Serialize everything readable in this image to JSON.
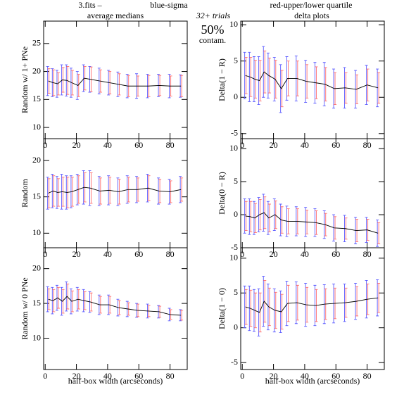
{
  "header": {
    "label": "3.fits –",
    "entries": [
      {
        "name": "blue-sigma",
        "color": "#5a5aff"
      },
      {
        "name": "red-upper/lower quartile",
        "color": "#ff4a4a"
      }
    ],
    "note": "32+ trials",
    "percent": "50%",
    "contam": "contam.",
    "column_titles": [
      "average medians",
      "delta plots"
    ]
  },
  "chart_data": [
    {
      "type": "errorbar",
      "ylabel": "Random w/ 1+ PNe",
      "x": [
        2,
        5,
        8,
        11,
        14,
        17,
        21,
        25,
        29,
        35,
        41,
        47,
        53,
        59,
        66,
        73,
        80,
        87
      ],
      "values": [
        18.3,
        18.0,
        17.8,
        18.5,
        18.4,
        18.0,
        17.5,
        18.8,
        18.6,
        18.3,
        18.0,
        17.7,
        17.4,
        17.4,
        17.4,
        17.5,
        17.4,
        17.4
      ],
      "sigma": [
        2.6,
        2.5,
        2.4,
        2.7,
        2.8,
        2.6,
        2.5,
        2.4,
        2.3,
        2.3,
        2.2,
        2.2,
        2.1,
        2.2,
        2.1,
        2.0,
        2.1,
        2.0
      ],
      "quartile": [
        2.2,
        2.3,
        2.0,
        2.2,
        2.5,
        2.2,
        2.0,
        2.1,
        2.2,
        2.0,
        2.0,
        1.9,
        1.9,
        1.8,
        1.9,
        1.8,
        1.8,
        1.9
      ],
      "xlim": [
        -1,
        91
      ],
      "ylim": [
        8,
        29
      ],
      "xticks": [
        0,
        20,
        40,
        60,
        80
      ],
      "yticks": [
        10,
        15,
        20,
        25
      ]
    },
    {
      "type": "errorbar",
      "ylabel": "Delta(1 − R)",
      "x": [
        2,
        5,
        8,
        11,
        14,
        17,
        21,
        25,
        29,
        35,
        41,
        47,
        53,
        59,
        66,
        73,
        80,
        87
      ],
      "values": [
        3.0,
        2.8,
        2.5,
        2.3,
        3.5,
        3.0,
        2.5,
        1.2,
        2.6,
        2.6,
        2.2,
        2.0,
        1.8,
        1.2,
        1.3,
        1.1,
        1.7,
        1.3
      ],
      "sigma": [
        3.2,
        3.4,
        3.1,
        3.3,
        3.5,
        3.1,
        3.0,
        3.3,
        3.0,
        3.1,
        2.9,
        2.8,
        3.0,
        2.7,
        2.8,
        2.6,
        2.7,
        2.6
      ],
      "quartile": [
        2.5,
        2.7,
        2.6,
        2.8,
        2.9,
        2.4,
        2.6,
        2.5,
        2.4,
        2.4,
        2.3,
        2.2,
        2.3,
        2.2,
        2.1,
        2.0,
        2.2,
        2.1
      ],
      "xlim": [
        -1,
        91
      ],
      "ylim": [
        -5.7,
        10.5
      ],
      "xticks": [
        0,
        20,
        40,
        60,
        80
      ],
      "yticks": [
        -5,
        0,
        5,
        10
      ]
    },
    {
      "type": "errorbar",
      "ylabel": "Random",
      "x": [
        2,
        5,
        8,
        11,
        14,
        17,
        21,
        25,
        29,
        35,
        41,
        47,
        53,
        59,
        66,
        73,
        80,
        87
      ],
      "values": [
        15.5,
        15.8,
        15.6,
        15.7,
        15.6,
        15.7,
        16.0,
        16.3,
        16.2,
        15.8,
        15.9,
        15.7,
        16.0,
        16.0,
        16.2,
        15.8,
        15.7,
        16.0
      ],
      "sigma": [
        2.2,
        2.3,
        2.2,
        2.4,
        2.3,
        2.2,
        2.1,
        2.3,
        2.4,
        2.0,
        2.0,
        1.9,
        1.9,
        1.8,
        1.9,
        1.8,
        1.7,
        1.8
      ],
      "quartile": [
        2.0,
        2.1,
        1.9,
        2.0,
        2.1,
        2.0,
        1.9,
        2.0,
        2.1,
        1.8,
        1.8,
        1.7,
        1.7,
        1.6,
        1.7,
        1.6,
        1.5,
        1.6
      ],
      "xlim": [
        -1,
        91
      ],
      "ylim": [
        8,
        23
      ],
      "xticks": [
        0,
        20,
        40,
        60,
        80
      ],
      "yticks": [
        10,
        15,
        20
      ]
    },
    {
      "type": "errorbar",
      "ylabel": "Delta(0 − R)",
      "x": [
        2,
        5,
        8,
        11,
        14,
        17,
        21,
        25,
        29,
        35,
        41,
        47,
        53,
        59,
        66,
        73,
        80,
        87
      ],
      "values": [
        -0.2,
        -0.3,
        -0.5,
        0.0,
        0.3,
        -0.5,
        0.0,
        -0.8,
        -1.0,
        -1.0,
        -1.1,
        -1.2,
        -1.5,
        -2.0,
        -2.1,
        -2.4,
        -2.3,
        -2.8
      ],
      "sigma": [
        2.6,
        2.7,
        2.5,
        2.6,
        2.8,
        2.5,
        2.4,
        2.4,
        2.3,
        2.2,
        2.2,
        2.1,
        2.1,
        2.0,
        2.0,
        2.0,
        1.9,
        2.0
      ],
      "quartile": [
        2.2,
        2.3,
        2.2,
        2.3,
        2.4,
        2.1,
        2.1,
        2.0,
        1.9,
        1.9,
        1.8,
        1.8,
        1.7,
        1.7,
        1.6,
        1.7,
        1.6,
        1.6
      ],
      "xlim": [
        -1,
        91
      ],
      "ylim": [
        -5,
        11.5
      ],
      "xticks": [
        0,
        20,
        40,
        60,
        80
      ],
      "yticks": [
        -5,
        0,
        5,
        10
      ]
    },
    {
      "type": "errorbar",
      "ylabel": "Random w/ 0 PNe",
      "xlabel": "half-box width (arcseconds)",
      "x": [
        2,
        5,
        8,
        11,
        14,
        17,
        21,
        25,
        29,
        35,
        41,
        47,
        53,
        59,
        66,
        73,
        80,
        87
      ],
      "values": [
        15.6,
        15.4,
        15.8,
        15.3,
        16.0,
        15.3,
        15.6,
        15.4,
        15.2,
        14.8,
        14.8,
        14.4,
        14.2,
        14.0,
        13.9,
        13.8,
        13.4,
        13.3
      ],
      "sigma": [
        1.8,
        1.9,
        1.8,
        2.0,
        2.1,
        1.8,
        1.7,
        1.6,
        1.5,
        1.4,
        1.4,
        1.2,
        1.1,
        1.0,
        1.0,
        0.9,
        0.9,
        0.8
      ],
      "quartile": [
        1.5,
        1.6,
        1.5,
        1.7,
        1.8,
        1.5,
        1.4,
        1.3,
        1.3,
        1.2,
        1.2,
        1.0,
        0.9,
        0.9,
        0.8,
        0.8,
        0.7,
        0.7
      ],
      "xlim": [
        -1,
        91
      ],
      "ylim": [
        5.5,
        23
      ],
      "xticks": [
        0,
        20,
        40,
        60,
        80
      ],
      "yticks": [
        10,
        15,
        20
      ]
    },
    {
      "type": "errorbar",
      "ylabel": "Delta(1 − 0)",
      "xlabel": "half-box width (arcseconds)",
      "x": [
        2,
        5,
        8,
        11,
        14,
        17,
        21,
        25,
        29,
        35,
        41,
        47,
        53,
        59,
        66,
        73,
        80,
        87
      ],
      "values": [
        3.0,
        2.8,
        2.5,
        2.2,
        3.8,
        3.0,
        2.5,
        2.3,
        3.5,
        3.6,
        3.3,
        3.2,
        3.4,
        3.5,
        3.6,
        3.8,
        4.1,
        4.3
      ],
      "sigma": [
        3.0,
        3.2,
        3.0,
        3.4,
        3.6,
        3.3,
        3.1,
        3.0,
        3.2,
        3.0,
        3.1,
        2.9,
        2.8,
        2.8,
        2.7,
        2.6,
        2.7,
        2.6
      ],
      "quartile": [
        2.5,
        2.6,
        2.5,
        2.8,
        3.0,
        2.7,
        2.6,
        2.5,
        2.6,
        2.5,
        2.5,
        2.3,
        2.2,
        2.2,
        2.1,
        2.1,
        2.2,
        2.1
      ],
      "xlim": [
        -1,
        91
      ],
      "ylim": [
        -6,
        11.5
      ],
      "xticks": [
        0,
        20,
        40,
        60,
        80
      ],
      "yticks": [
        -5,
        0,
        5,
        10
      ]
    }
  ]
}
